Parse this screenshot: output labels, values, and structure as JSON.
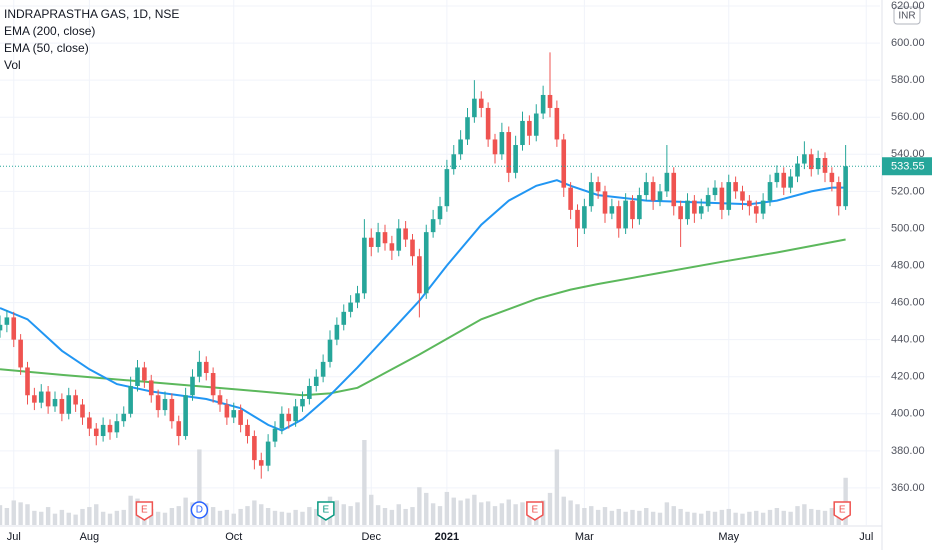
{
  "chart_data": {
    "type": "candlestick",
    "title": "INDRAPRASTHA GAS, 1D, NSE",
    "currency": "INR",
    "up_color": "#26a69a",
    "down_color": "#ef5350",
    "volume_color": "#d9dce1",
    "grid": true,
    "ylim": [
      340,
      620
    ],
    "yticks": [
      {
        "value": 360,
        "label": "360.00"
      },
      {
        "value": 380,
        "label": "380.00"
      },
      {
        "value": 400,
        "label": "400.00"
      },
      {
        "value": 420,
        "label": "420.00"
      },
      {
        "value": 440,
        "label": "440.00"
      },
      {
        "value": 460,
        "label": "460.00"
      },
      {
        "value": 480,
        "label": "480.00"
      },
      {
        "value": 500,
        "label": "500.00"
      },
      {
        "value": 520,
        "label": "520.00"
      },
      {
        "value": 540,
        "label": "540.00"
      },
      {
        "value": 560,
        "label": "560.00"
      },
      {
        "value": 580,
        "label": "580.00"
      },
      {
        "value": 600,
        "label": "600.00"
      },
      {
        "value": 620,
        "label": "620.00"
      }
    ],
    "xlim": [
      0,
      128
    ],
    "xticks": [
      {
        "value": 2,
        "label": "Jul"
      },
      {
        "value": 13,
        "label": "Aug"
      },
      {
        "value": 34,
        "label": "Oct"
      },
      {
        "value": 54,
        "label": "Dec"
      },
      {
        "value": 65,
        "label": "2021"
      },
      {
        "value": 85,
        "label": "Mar"
      },
      {
        "value": 106,
        "label": "May"
      },
      {
        "value": 126,
        "label": "Jul"
      }
    ],
    "ohlc": [
      [
        445,
        453,
        441,
        448
      ],
      [
        448,
        456,
        444,
        452
      ],
      [
        452,
        455,
        436,
        440
      ],
      [
        440,
        443,
        421,
        425
      ],
      [
        425,
        428,
        405,
        410
      ],
      [
        410,
        414,
        402,
        406
      ],
      [
        406,
        416,
        403,
        412
      ],
      [
        412,
        415,
        400,
        404
      ],
      [
        404,
        412,
        401,
        408
      ],
      [
        408,
        411,
        396,
        400
      ],
      [
        400,
        414,
        397,
        410
      ],
      [
        410,
        413,
        401,
        405
      ],
      [
        405,
        408,
        394,
        398
      ],
      [
        398,
        401,
        388,
        392
      ],
      [
        392,
        395,
        383,
        388
      ],
      [
        388,
        398,
        385,
        394
      ],
      [
        394,
        397,
        386,
        390
      ],
      [
        390,
        400,
        387,
        396
      ],
      [
        396,
        404,
        393,
        400
      ],
      [
        400,
        420,
        398,
        415
      ],
      [
        415,
        429,
        412,
        425
      ],
      [
        425,
        428,
        414,
        418
      ],
      [
        418,
        421,
        406,
        410
      ],
      [
        410,
        413,
        398,
        402
      ],
      [
        402,
        412,
        399,
        408
      ],
      [
        408,
        411,
        392,
        396
      ],
      [
        396,
        399,
        383,
        388
      ],
      [
        388,
        414,
        386,
        410
      ],
      [
        410,
        424,
        407,
        420
      ],
      [
        420,
        434,
        417,
        428
      ],
      [
        428,
        431,
        418,
        422
      ],
      [
        422,
        425,
        406,
        410
      ],
      [
        410,
        413,
        401,
        405
      ],
      [
        405,
        408,
        394,
        398
      ],
      [
        398,
        406,
        395,
        402
      ],
      [
        402,
        405,
        390,
        394
      ],
      [
        394,
        397,
        384,
        388
      ],
      [
        388,
        391,
        370,
        375
      ],
      [
        375,
        379,
        365,
        372
      ],
      [
        372,
        389,
        369,
        385
      ],
      [
        385,
        396,
        382,
        392
      ],
      [
        392,
        404,
        389,
        400
      ],
      [
        400,
        403,
        392,
        396
      ],
      [
        396,
        408,
        393,
        404
      ],
      [
        404,
        412,
        401,
        408
      ],
      [
        408,
        419,
        405,
        415
      ],
      [
        415,
        424,
        412,
        420
      ],
      [
        420,
        432,
        417,
        428
      ],
      [
        428,
        445,
        425,
        440
      ],
      [
        440,
        452,
        437,
        448
      ],
      [
        448,
        459,
        445,
        455
      ],
      [
        455,
        464,
        452,
        460
      ],
      [
        460,
        469,
        457,
        465
      ],
      [
        465,
        505,
        462,
        495
      ],
      [
        495,
        500,
        485,
        490
      ],
      [
        490,
        503,
        487,
        498
      ],
      [
        498,
        502,
        488,
        492
      ],
      [
        492,
        496,
        483,
        488
      ],
      [
        488,
        505,
        485,
        500
      ],
      [
        500,
        504,
        490,
        494
      ],
      [
        494,
        497,
        480,
        485
      ],
      [
        485,
        489,
        452,
        465
      ],
      [
        465,
        502,
        462,
        498
      ],
      [
        498,
        510,
        495,
        505
      ],
      [
        505,
        517,
        502,
        512
      ],
      [
        512,
        537,
        509,
        532
      ],
      [
        532,
        545,
        529,
        540
      ],
      [
        540,
        553,
        537,
        548
      ],
      [
        548,
        565,
        545,
        560
      ],
      [
        560,
        580,
        557,
        570
      ],
      [
        570,
        574,
        560,
        565
      ],
      [
        565,
        568,
        544,
        548
      ],
      [
        548,
        551,
        535,
        540
      ],
      [
        540,
        557,
        537,
        552
      ],
      [
        552,
        555,
        525,
        530
      ],
      [
        530,
        550,
        527,
        545
      ],
      [
        545,
        563,
        542,
        558
      ],
      [
        558,
        561,
        545,
        550
      ],
      [
        550,
        567,
        547,
        562
      ],
      [
        562,
        577,
        559,
        572
      ],
      [
        572,
        595,
        560,
        565
      ],
      [
        565,
        569,
        544,
        548
      ],
      [
        548,
        551,
        517,
        522
      ],
      [
        522,
        525,
        505,
        510
      ],
      [
        510,
        513,
        490,
        500
      ],
      [
        500,
        516,
        497,
        512
      ],
      [
        512,
        530,
        509,
        525
      ],
      [
        525,
        528,
        516,
        520
      ],
      [
        520,
        523,
        503,
        508
      ],
      [
        508,
        516,
        505,
        512
      ],
      [
        512,
        515,
        495,
        500
      ],
      [
        500,
        519,
        497,
        515
      ],
      [
        515,
        518,
        500,
        505
      ],
      [
        505,
        522,
        502,
        518
      ],
      [
        518,
        530,
        515,
        525
      ],
      [
        525,
        528,
        510,
        515
      ],
      [
        515,
        524,
        512,
        520
      ],
      [
        520,
        545,
        517,
        530
      ],
      [
        530,
        533,
        507,
        512
      ],
      [
        512,
        515,
        490,
        505
      ],
      [
        505,
        519,
        502,
        515
      ],
      [
        515,
        518,
        503,
        508
      ],
      [
        508,
        516,
        505,
        512
      ],
      [
        512,
        522,
        509,
        518
      ],
      [
        518,
        526,
        515,
        522
      ],
      [
        522,
        525,
        505,
        510
      ],
      [
        510,
        529,
        507,
        525
      ],
      [
        525,
        528,
        516,
        520
      ],
      [
        520,
        523,
        510,
        515
      ],
      [
        515,
        518,
        507,
        512
      ],
      [
        512,
        515,
        503,
        508
      ],
      [
        508,
        519,
        505,
        515
      ],
      [
        515,
        529,
        512,
        525
      ],
      [
        525,
        534,
        522,
        530
      ],
      [
        530,
        533,
        518,
        522
      ],
      [
        522,
        532,
        519,
        528
      ],
      [
        528,
        539,
        525,
        535
      ],
      [
        535,
        547,
        532,
        540
      ],
      [
        540,
        543,
        528,
        532
      ],
      [
        532,
        542,
        529,
        538
      ],
      [
        538,
        541,
        525,
        530
      ],
      [
        530,
        533,
        520,
        525
      ],
      [
        525,
        528,
        507,
        512
      ],
      [
        512,
        545,
        510,
        533.55
      ]
    ],
    "volume": [
      2.1,
      1.8,
      2.6,
      2.4,
      2.2,
      1.5,
      1.4,
      1.9,
      1.2,
      1.6,
      1.3,
      1.1,
      1.7,
      1.9,
      2.2,
      1.4,
      1.2,
      1.5,
      1.6,
      3.1,
      2.8,
      1.9,
      1.7,
      1.4,
      1.3,
      1.8,
      2.0,
      2.9,
      2.4,
      8.0,
      2.3,
      1.9,
      1.5,
      1.6,
      1.2,
      1.7,
      2.0,
      2.6,
      2.2,
      1.8,
      1.5,
      1.4,
      1.3,
      1.6,
      1.4,
      1.9,
      1.7,
      2.4,
      3.0,
      2.6,
      2.2,
      2.0,
      2.4,
      9.0,
      3.2,
      2.1,
      1.8,
      1.6,
      2.2,
      1.7,
      1.9,
      4.0,
      3.4,
      2.3,
      2.0,
      3.5,
      2.9,
      2.6,
      2.8,
      3.2,
      2.4,
      2.5,
      2.0,
      2.3,
      2.7,
      2.2,
      2.4,
      2.0,
      2.1,
      2.6,
      3.4,
      8.0,
      3.0,
      2.6,
      2.2,
      1.8,
      2.0,
      1.6,
      1.9,
      1.5,
      1.7,
      1.4,
      1.6,
      1.5,
      1.8,
      1.4,
      1.3,
      2.4,
      2.0,
      1.7,
      1.4,
      1.3,
      1.2,
      1.5,
      1.4,
      1.6,
      1.7,
      1.3,
      1.2,
      1.4,
      1.5,
      1.3,
      1.6,
      1.8,
      1.5,
      1.4,
      2.0,
      2.2,
      1.7,
      1.6,
      1.5,
      1.8,
      2.4,
      5.0
    ],
    "series": [
      {
        "name": "EMA (200, close)",
        "color": "#5cb85c",
        "x": [
          0,
          9,
          22,
          35,
          44,
          48,
          52,
          61,
          70,
          78,
          83,
          87,
          96,
          105,
          113,
          123
        ],
        "values": [
          424,
          421,
          417,
          413,
          410,
          411,
          414,
          432,
          451,
          462,
          467,
          470,
          476,
          482,
          487,
          494
        ]
      },
      {
        "name": "EMA (50, close)",
        "color": "#2196f3",
        "x": [
          0,
          4,
          9,
          13,
          17,
          22,
          26,
          30,
          35,
          39,
          41,
          44,
          48,
          52,
          57,
          61,
          65,
          70,
          74,
          78,
          81,
          83,
          87,
          94,
          102,
          109,
          113,
          118,
          121,
          123
        ],
        "values": [
          457,
          451,
          434,
          424,
          416,
          412,
          410,
          408,
          403,
          394,
          391,
          397,
          410,
          425,
          445,
          461,
          480,
          502,
          515,
          523,
          526,
          523,
          518,
          515,
          514,
          513,
          515,
          520,
          522,
          522
        ]
      }
    ],
    "volume_name": "Vol",
    "events": [
      {
        "x": 21,
        "label": "E",
        "color": "#ef5350",
        "shape": "badge"
      },
      {
        "x": 29,
        "label": "D",
        "color": "#2962ff",
        "shape": "circle"
      },
      {
        "x": 47.4,
        "label": "E",
        "color": "#089981",
        "shape": "badge"
      },
      {
        "x": 77.8,
        "label": "E",
        "color": "#ef5350",
        "shape": "badge"
      },
      {
        "x": 122.5,
        "label": "E",
        "color": "#ef5350",
        "shape": "badge"
      }
    ]
  }
}
